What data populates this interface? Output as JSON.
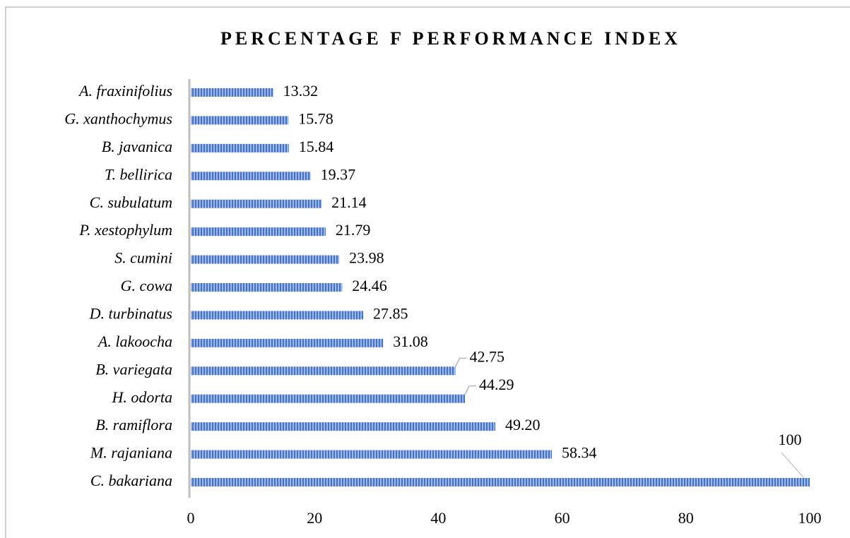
{
  "chart_data": {
    "type": "bar",
    "orientation": "horizontal",
    "title": "PERCENTAGE F PERFORMANCE INDEX",
    "categories": [
      "A. fraxinifolius",
      "G. xanthochymus",
      "B. javanica",
      "T. bellirica",
      "C. subulatum",
      "P. xestophylum",
      "S. cumini",
      "G. cowa",
      "D. turbinatus",
      "A. lakoocha",
      "B. variegata",
      "H. odorta",
      "B. ramiflora",
      "M. rajaniana",
      "C. bakariana"
    ],
    "values": [
      13.32,
      15.78,
      15.84,
      19.37,
      21.14,
      21.79,
      23.98,
      24.46,
      27.85,
      31.08,
      42.75,
      44.29,
      49.2,
      58.34,
      100
    ],
    "value_labels": [
      "13.32",
      "15.78",
      "15.84",
      "19.37",
      "21.14",
      "21.79",
      "23.98",
      "24.46",
      "27.85",
      "31.08",
      "42.75",
      "44.29",
      "49.20",
      "58.34",
      "100"
    ],
    "color": "#4472c4",
    "xlim": [
      0,
      100
    ],
    "xticks": [
      0,
      20,
      40,
      60,
      80,
      100
    ],
    "grid": false
  }
}
